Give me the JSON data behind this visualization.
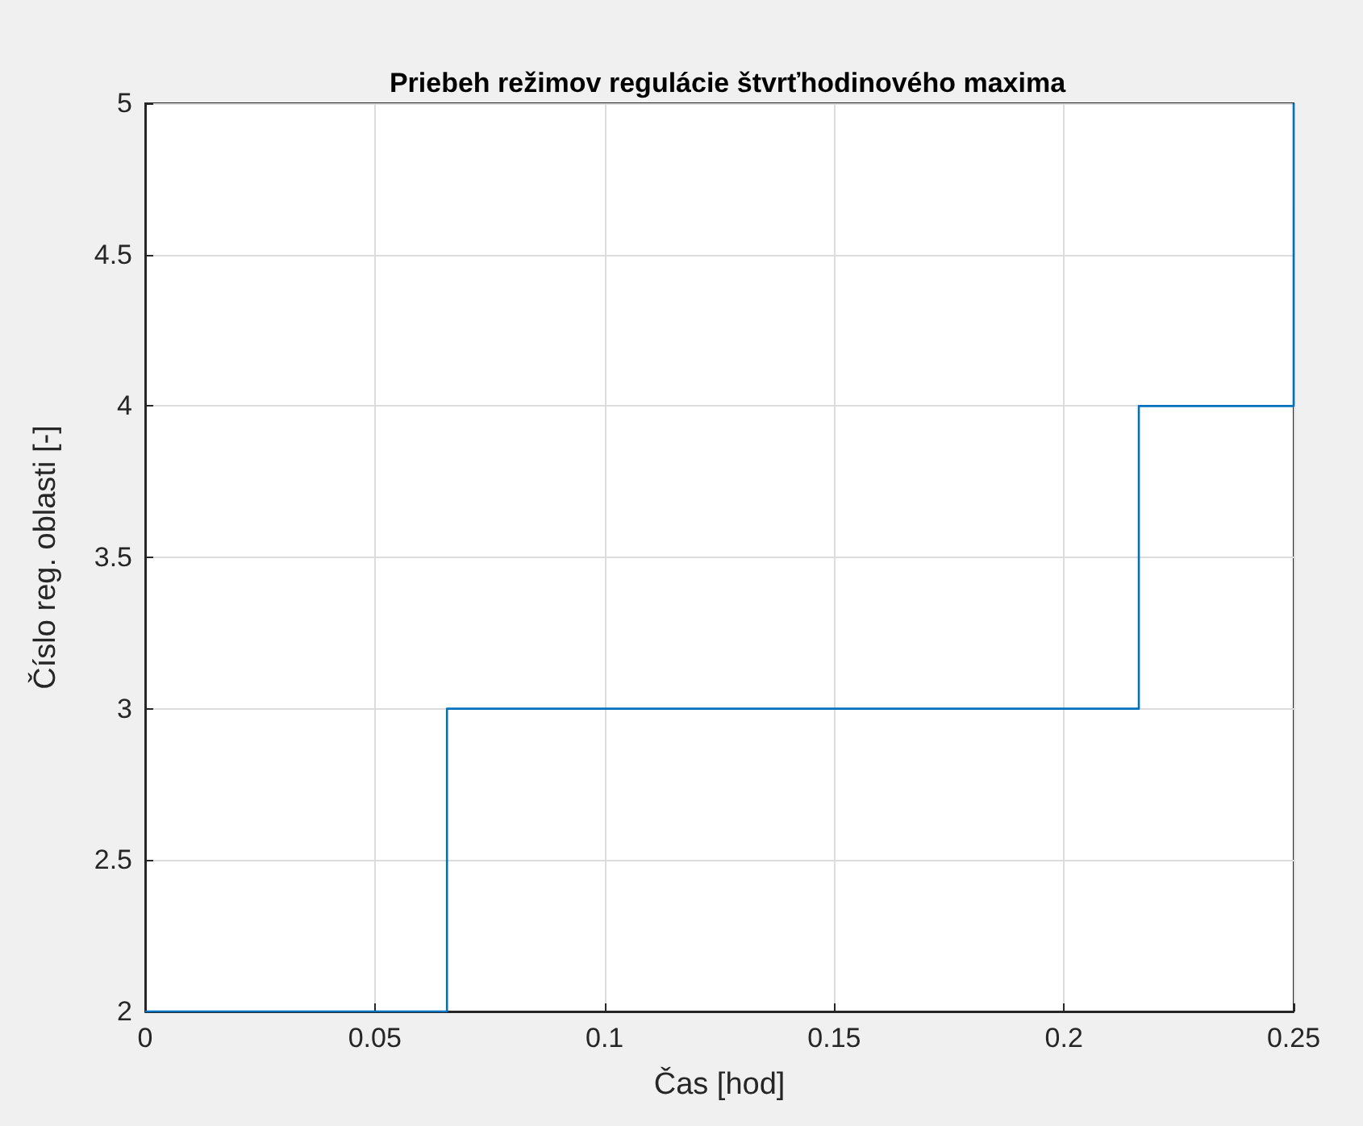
{
  "chart_data": {
    "type": "step",
    "title": "Priebeh režimov regulácie štvrťhodinového maxima",
    "xlabel": "Čas [hod]",
    "ylabel": "Číslo reg. oblasti [-]",
    "x": [
      0,
      0.0657,
      0.2163,
      0.25
    ],
    "series": [
      {
        "color": "#0072bd",
        "values": [
          2,
          3,
          4,
          5
        ]
      }
    ],
    "xlim": [
      0,
      0.25
    ],
    "xticks": [
      0,
      0.05,
      0.1,
      0.15,
      0.2,
      0.25
    ],
    "ylim": [
      2,
      5
    ],
    "yticks": [
      2,
      2.5,
      3,
      3.5,
      4,
      4.5,
      5
    ],
    "grid": true,
    "marker": "none",
    "line_style": "solid"
  }
}
